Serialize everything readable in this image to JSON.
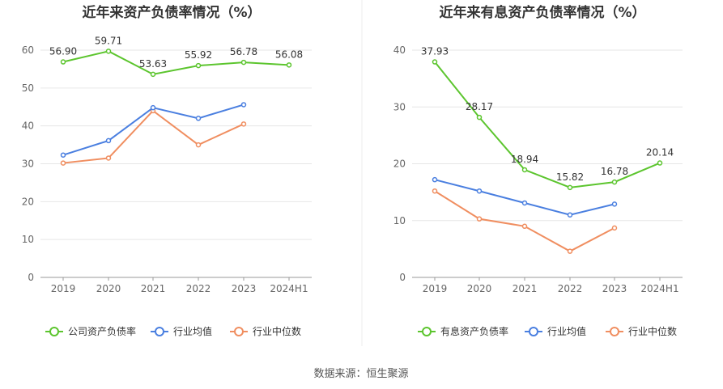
{
  "source": "数据来源：恒生聚源",
  "chart_data": [
    {
      "type": "line",
      "title": "近年来资产负债率情况（%）",
      "categories": [
        "2019",
        "2020",
        "2021",
        "2022",
        "2023",
        "2024H1"
      ],
      "ylim": [
        0,
        60
      ],
      "yticks": [
        "0",
        "10",
        "20",
        "30",
        "40",
        "50",
        "60"
      ],
      "series": [
        {
          "name": "公司资产负债率",
          "color": "#5cc52e",
          "values": [
            56.9,
            59.71,
            53.63,
            55.92,
            56.78,
            56.08
          ],
          "labels": [
            "56.90",
            "59.71",
            "53.63",
            "55.92",
            "56.78",
            "56.08"
          ]
        },
        {
          "name": "行业均值",
          "color": "#4a7fe0",
          "values": [
            32.3,
            36.1,
            44.8,
            42.0,
            45.6,
            null
          ]
        },
        {
          "name": "行业中位数",
          "color": "#f08e60",
          "values": [
            30.2,
            31.5,
            44.0,
            35.0,
            40.5,
            null
          ]
        }
      ],
      "legend": "bottom"
    },
    {
      "type": "line",
      "title": "近年来有息资产负债率情况（%）",
      "categories": [
        "2019",
        "2020",
        "2021",
        "2022",
        "2023",
        "2024H1"
      ],
      "ylim": [
        0,
        40
      ],
      "yticks": [
        "0",
        "10",
        "20",
        "30",
        "40"
      ],
      "series": [
        {
          "name": "有息资产负债率",
          "color": "#5cc52e",
          "values": [
            37.93,
            28.17,
            18.94,
            15.82,
            16.78,
            20.14
          ],
          "labels": [
            "37.93",
            "28.17",
            "18.94",
            "15.82",
            "16.78",
            "20.14"
          ]
        },
        {
          "name": "行业均值",
          "color": "#4a7fe0",
          "values": [
            17.2,
            15.2,
            13.1,
            11.0,
            12.9,
            null
          ]
        },
        {
          "name": "行业中位数",
          "color": "#f08e60",
          "values": [
            15.2,
            10.3,
            9.0,
            4.6,
            8.7,
            null
          ]
        }
      ],
      "legend": "bottom"
    }
  ]
}
